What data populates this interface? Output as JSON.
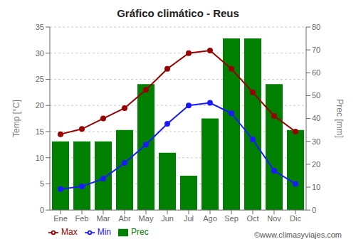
{
  "chart_data": {
    "type": "bar",
    "title": "Gráfico climático - Reus",
    "categories": [
      "Ene",
      "Feb",
      "Mar",
      "Abr",
      "May",
      "Jun",
      "Jul",
      "Ago",
      "Sep",
      "Oct",
      "Nov",
      "Dic"
    ],
    "series": [
      {
        "name": "Prec",
        "type": "bar",
        "axis": "y2",
        "color": "#008000",
        "values": [
          30,
          30,
          30,
          35,
          55,
          25,
          15,
          40,
          75,
          75,
          55,
          35
        ]
      },
      {
        "name": "Min",
        "type": "line",
        "color": "#1a1aff",
        "marker": "circle",
        "values": [
          4,
          4.5,
          6,
          9,
          12.5,
          16.5,
          20,
          20.5,
          18.5,
          13.5,
          7.5,
          5
        ]
      },
      {
        "name": "Max",
        "type": "line",
        "color": "#990000",
        "marker": "circle",
        "values": [
          14.5,
          15.5,
          17.5,
          19.5,
          23,
          27,
          30,
          30.5,
          27,
          22.5,
          18,
          15
        ]
      }
    ],
    "ylim": [
      0,
      35
    ],
    "yticks": [
      0,
      5,
      10,
      15,
      20,
      25,
      30,
      35
    ],
    "y2lim": [
      0,
      80
    ],
    "y2ticks": [
      0,
      10,
      20,
      30,
      40,
      50,
      60,
      70,
      80
    ],
    "ylabel": "Temp [°C]",
    "y2label": "Prec [mm]",
    "grid": true,
    "legend": "lower left",
    "annotation": "©www.climasyviajes.com"
  }
}
